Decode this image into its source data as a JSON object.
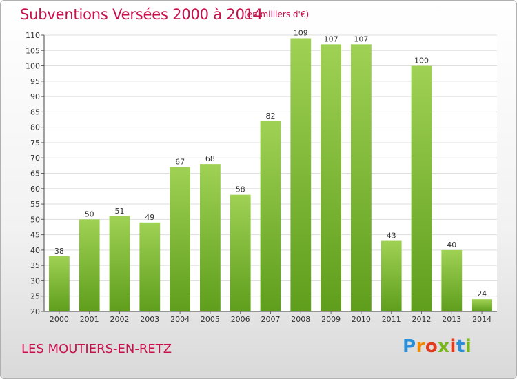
{
  "header": {
    "title": "Subventions Versées 2000 à 2014",
    "unit": "(en milliers d'€)"
  },
  "footer": {
    "commune": "LES MOUTIERS-EN-RETZ",
    "logo": {
      "text": "Proxiti",
      "letters": [
        {
          "ch": "P",
          "color": "#2a8fd6"
        },
        {
          "ch": "r",
          "color": "#f08a00"
        },
        {
          "ch": "o",
          "color": "#e23c1e"
        },
        {
          "ch": "x",
          "color": "#7ab51d"
        },
        {
          "ch": "i",
          "color": "#e23c1e"
        },
        {
          "ch": "t",
          "color": "#2a8fd6"
        },
        {
          "ch": "i",
          "color": "#7ab51d"
        }
      ]
    }
  },
  "colors": {
    "accent": "#c8104a",
    "bar_top": "#9fd154",
    "bar_bottom": "#5f9e1c",
    "grid": "#dedede"
  },
  "chart_data": {
    "type": "bar",
    "categories": [
      "2000",
      "2001",
      "2002",
      "2003",
      "2004",
      "2005",
      "2006",
      "2007",
      "2008",
      "2009",
      "2010",
      "2011",
      "2012",
      "2013",
      "2014"
    ],
    "values": [
      38,
      50,
      51,
      49,
      67,
      68,
      58,
      82,
      109,
      107,
      107,
      43,
      100,
      40,
      24
    ],
    "title": "Subventions Versées 2000 à 2014",
    "xlabel": "",
    "ylabel": "",
    "ylim": [
      20,
      110
    ],
    "yticks": [
      20,
      25,
      30,
      35,
      40,
      45,
      50,
      55,
      60,
      65,
      70,
      75,
      80,
      85,
      90,
      95,
      100,
      105,
      110
    ],
    "grid": true,
    "data_labels": true
  }
}
